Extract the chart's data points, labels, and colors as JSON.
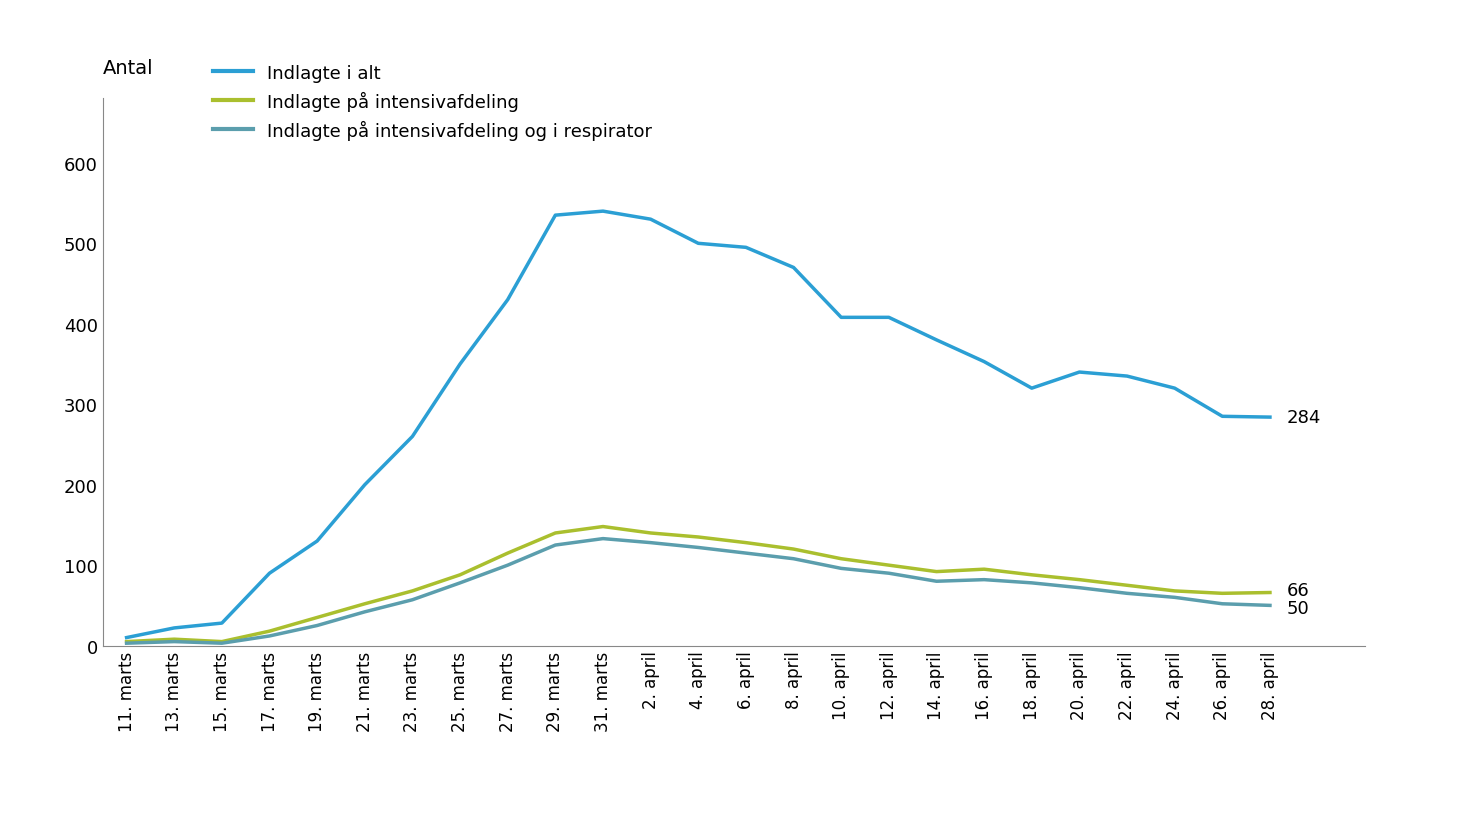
{
  "x_labels": [
    "11. marts",
    "13. marts",
    "15. marts",
    "17. marts",
    "19. marts",
    "21. marts",
    "23. marts",
    "25. marts",
    "27. marts",
    "29. marts",
    "31. marts",
    "2. april",
    "4. april",
    "6. april",
    "8. april",
    "10. april",
    "12. april",
    "14. april",
    "16. april",
    "18. april",
    "20. april",
    "22. april",
    "24. april",
    "26. april",
    "28. april"
  ],
  "indlagt_i_alt": [
    10,
    22,
    28,
    90,
    130,
    200,
    260,
    350,
    430,
    535,
    540,
    530,
    500,
    495,
    470,
    408,
    408,
    380,
    353,
    320,
    340,
    335,
    320,
    285,
    284
  ],
  "intensiv": [
    5,
    8,
    5,
    18,
    35,
    52,
    68,
    88,
    115,
    140,
    148,
    140,
    135,
    128,
    120,
    108,
    100,
    92,
    95,
    88,
    82,
    75,
    68,
    65,
    66
  ],
  "respirator": [
    3,
    5,
    3,
    12,
    25,
    42,
    57,
    78,
    100,
    125,
    133,
    128,
    122,
    115,
    108,
    96,
    90,
    80,
    82,
    78,
    72,
    65,
    60,
    52,
    50
  ],
  "color_total": "#2B9FD4",
  "color_intensiv": "#AABF2E",
  "color_respirator": "#5B9EAD",
  "ylabel": "Antal",
  "yticks": [
    0,
    100,
    200,
    300,
    400,
    500,
    600
  ],
  "ylim": [
    0,
    680
  ],
  "end_labels": {
    "total": 284,
    "intensiv": 66,
    "respirator": 50
  },
  "legend": [
    "Indlagte i alt",
    "Indlagte på intensivafdeling",
    "Indlagte på intensivafdeling og i respirator"
  ]
}
